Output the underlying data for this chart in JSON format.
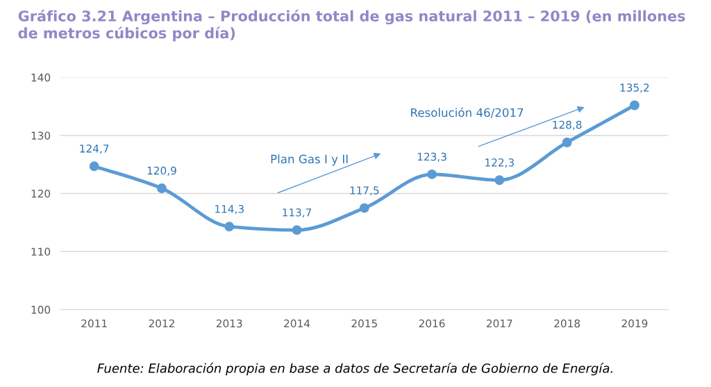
{
  "chart_data": {
    "type": "line",
    "title": "Gráfico 3.21 Argentina – Producción total de gas natural 2011 – 2019 (en millones de metros cúbicos por día)",
    "categories": [
      "2011",
      "2012",
      "2013",
      "2014",
      "2015",
      "2016",
      "2017",
      "2018",
      "2019"
    ],
    "series": [
      {
        "color": "#5b9bd5",
        "values": [
          124.7,
          120.9,
          114.3,
          113.7,
          117.5,
          123.3,
          122.3,
          128.8,
          135.2
        ],
        "value_labels": [
          "124,7",
          "120,9",
          "114,3",
          "113,7",
          "117,5",
          "123,3",
          "122,3",
          "128,8",
          "135,2"
        ]
      }
    ],
    "ylim": [
      100,
      140
    ],
    "yticks": [
      100,
      110,
      120,
      130,
      140
    ],
    "grid": "y",
    "marker": "circle",
    "line_style": "solid",
    "legend": false,
    "annotations": [
      "Plan Gas I y II",
      "Resolución 46/2017",
      "Fuente: Elaboración propia en base a datos de Secretaría de Gobierno de Energía."
    ]
  }
}
